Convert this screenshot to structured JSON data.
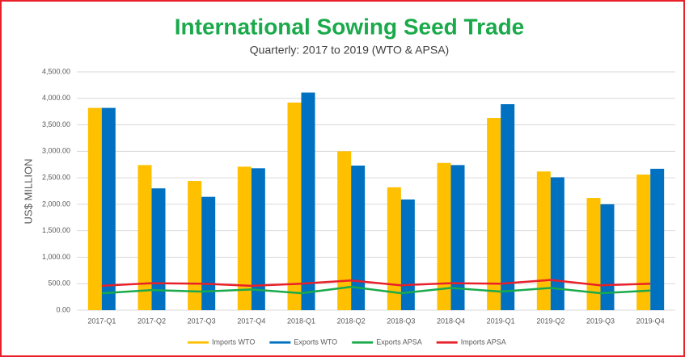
{
  "chart_data": {
    "type": "bar",
    "title": "International Sowing Seed Trade",
    "subtitle": "Quarterly: 2017 to 2019 (WTO & APSA)",
    "y_label": "US$ MILLION",
    "categories": [
      "2017-Q1",
      "2017-Q2",
      "2017-Q3",
      "2017-Q4",
      "2018-Q1",
      "2018-Q2",
      "2018-Q3",
      "2018-Q4",
      "2019-Q1",
      "2019-Q2",
      "2019-Q3",
      "2019-Q4"
    ],
    "series": [
      {
        "name": "Imports WTO",
        "type": "bar",
        "color": "#ffc000",
        "values": [
          3820,
          2740,
          2440,
          2710,
          3920,
          3000,
          2320,
          2780,
          3630,
          2620,
          2120,
          2560
        ]
      },
      {
        "name": "Exports WTO",
        "type": "bar",
        "color": "#0070c0",
        "values": [
          3820,
          2300,
          2140,
          2680,
          4110,
          2730,
          2090,
          2740,
          3890,
          2510,
          2000,
          2670
        ]
      },
      {
        "name": "Exports APSA",
        "type": "line",
        "color": "#1aaa4b",
        "values": [
          320,
          380,
          350,
          390,
          320,
          440,
          320,
          420,
          350,
          420,
          320,
          370
        ]
      },
      {
        "name": "Imports APSA",
        "type": "line",
        "color": "#e8202a",
        "values": [
          460,
          510,
          500,
          460,
          500,
          560,
          470,
          510,
          500,
          570,
          470,
          500
        ]
      }
    ],
    "ylim": [
      0,
      4500
    ],
    "yticks": [
      {
        "value": 0,
        "label": "0.00"
      },
      {
        "value": 500,
        "label": "500.00"
      },
      {
        "value": 1000,
        "label": "1,000.00"
      },
      {
        "value": 1500,
        "label": "1,500.00"
      },
      {
        "value": 2000,
        "label": "2,000.00"
      },
      {
        "value": 2500,
        "label": "2,500.00"
      },
      {
        "value": 3000,
        "label": "3,000.00"
      },
      {
        "value": 3500,
        "label": "3,500.00"
      },
      {
        "value": 4000,
        "label": "4,000.00"
      },
      {
        "value": 4500,
        "label": "4,500.00"
      }
    ],
    "grid": true
  }
}
